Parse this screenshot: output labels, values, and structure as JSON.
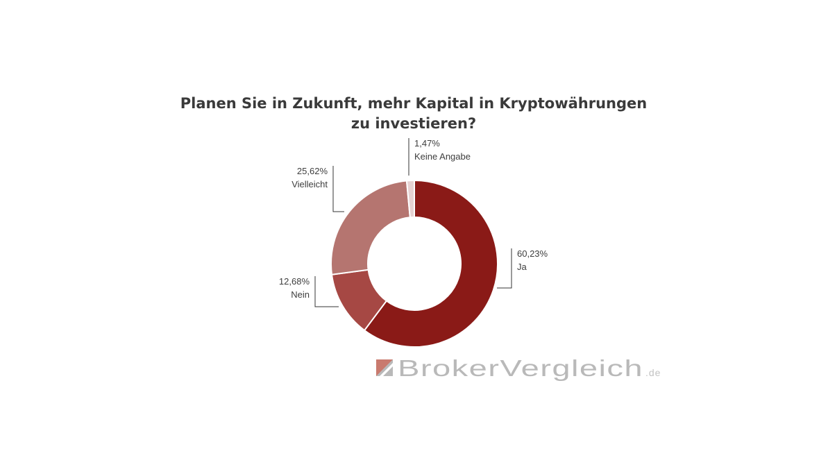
{
  "chart_data": {
    "type": "pie",
    "title_lines": [
      "Planen Sie in Zukunft, mehr Kapital in Kryptowährungen",
      "zu investieren?"
    ],
    "donut": true,
    "slices": [
      {
        "label": "Ja",
        "value": 60.23,
        "value_text": "60,23%",
        "color": "#8a1a17"
      },
      {
        "label": "Nein",
        "value": 12.68,
        "value_text": "12,68%",
        "color": "#a64844"
      },
      {
        "label": "Vielleicht",
        "value": 25.62,
        "value_text": "25,62%",
        "color": "#b57570"
      },
      {
        "label": "Keine Angabe",
        "value": 1.47,
        "value_text": "1,47%",
        "color": "#e6d2d2"
      }
    ]
  },
  "watermark": {
    "text": "BrokerVergleich",
    "suffix": ".de",
    "icon": "brokervergleich-logo-icon"
  }
}
